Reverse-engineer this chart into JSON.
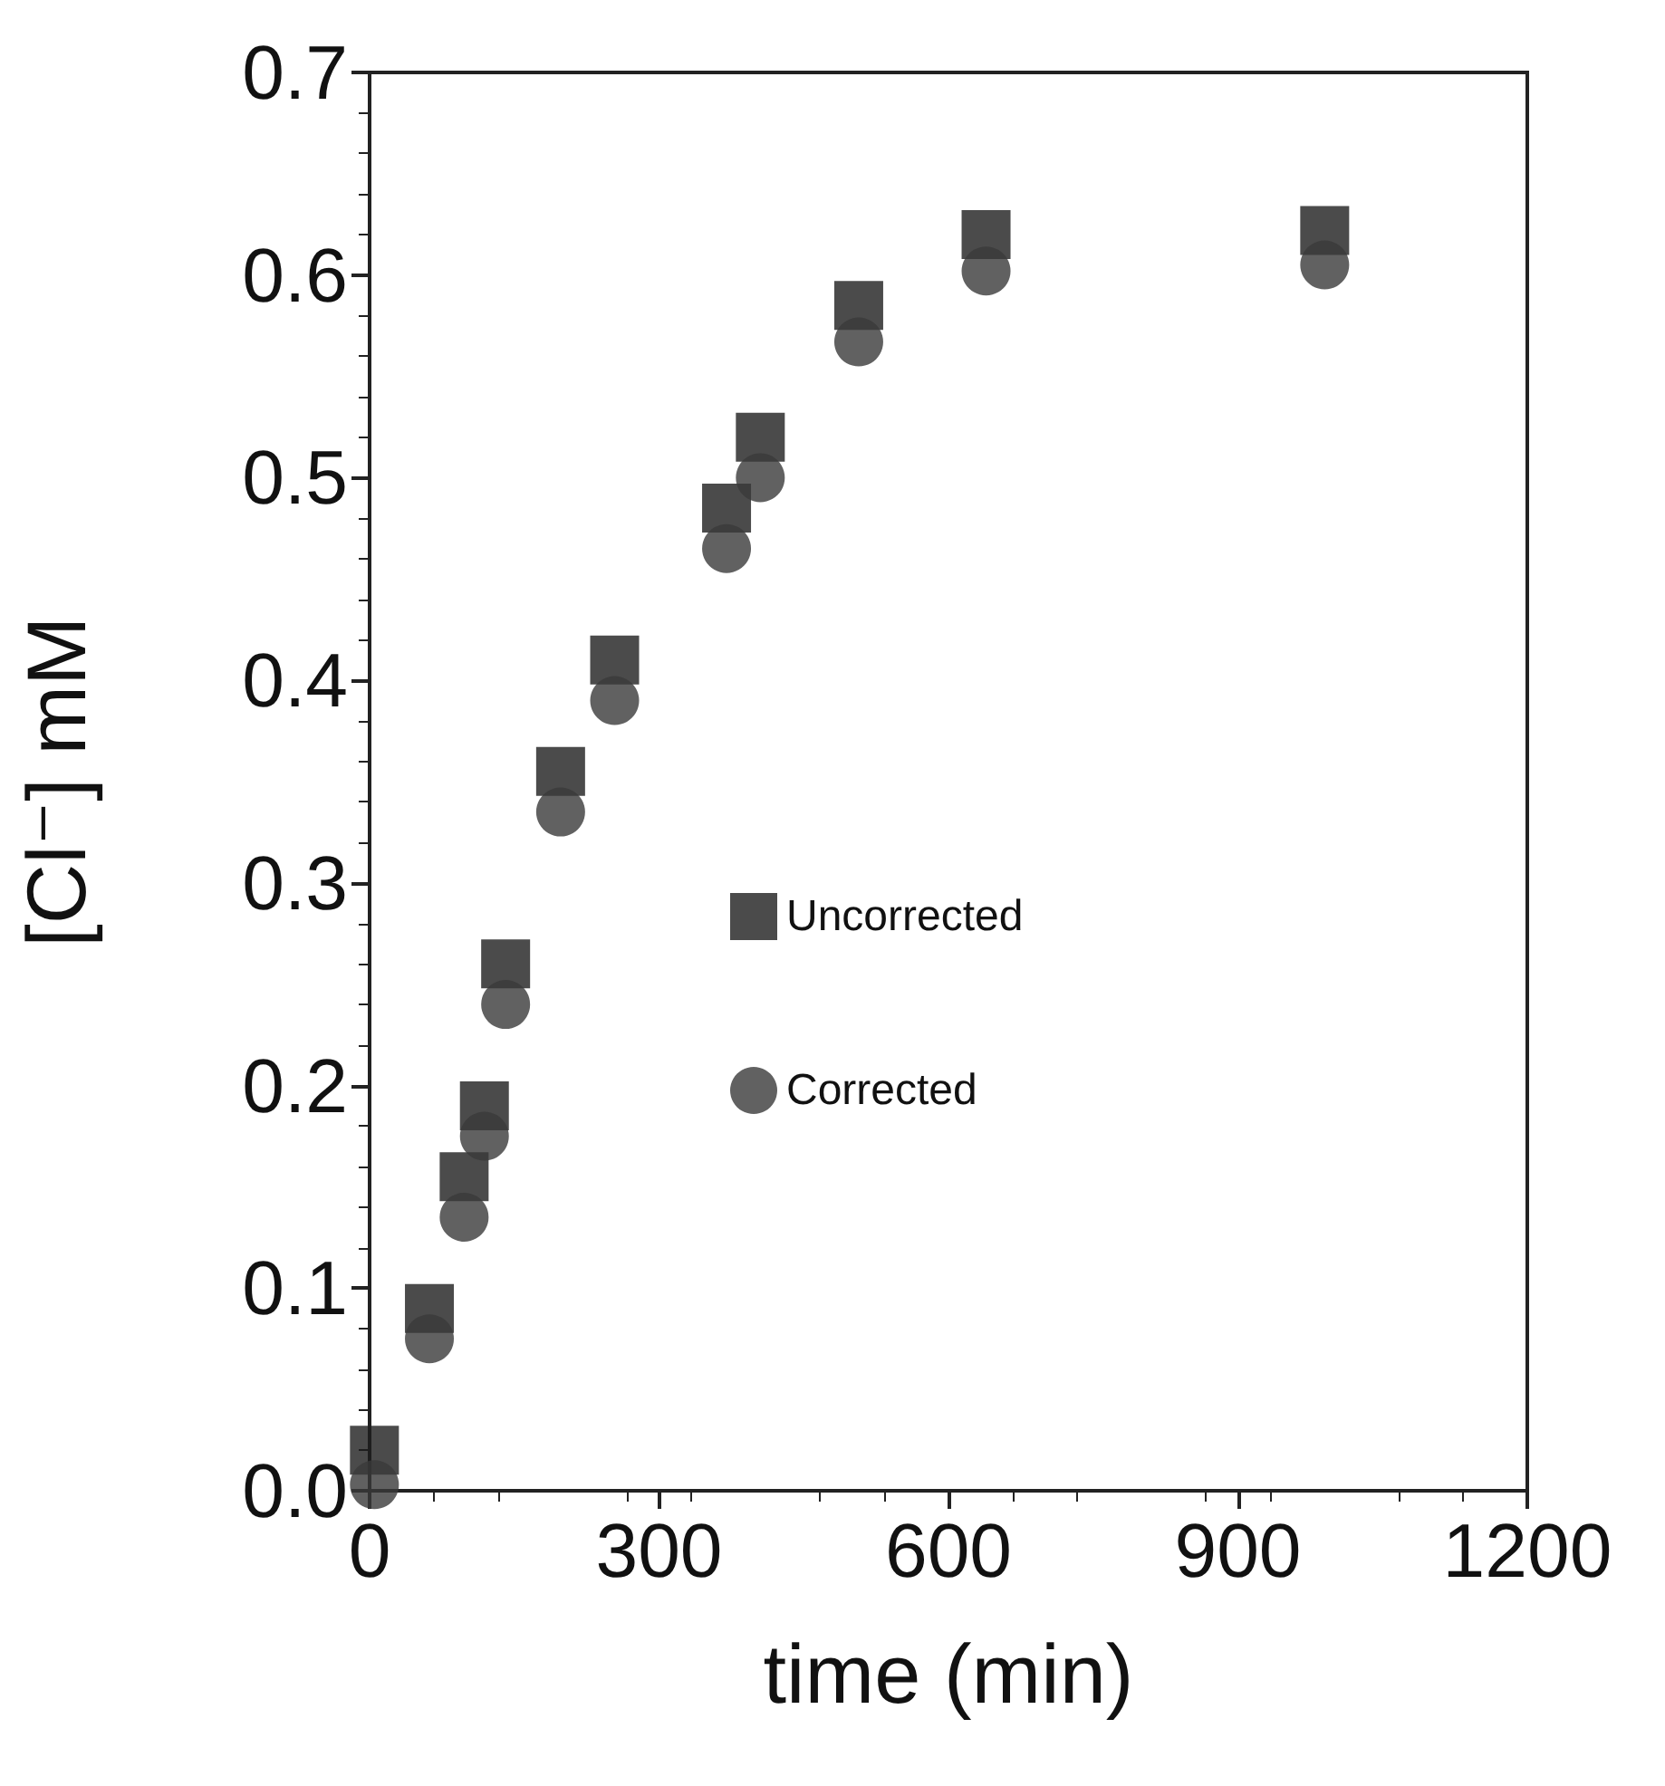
{
  "chart_data": {
    "type": "scatter",
    "xlabel": "time (min)",
    "ylabel": "[Cl⁻] mM",
    "xlim": [
      0,
      1200
    ],
    "xticks": [
      0,
      300,
      600,
      900,
      1200
    ],
    "ylim": [
      0,
      0.7
    ],
    "yticks": [
      {
        "value": 0,
        "label": "0.0"
      },
      {
        "value": 0.1,
        "label": "0.1"
      },
      {
        "value": 0.2,
        "label": "0.2"
      },
      {
        "value": 0.3,
        "label": "0.3"
      },
      {
        "value": 0.4,
        "label": "0.4"
      },
      {
        "value": 0.5,
        "label": "0.5"
      },
      {
        "value": 0.6,
        "label": "0.6"
      },
      {
        "value": 0.7,
        "label": "0.7"
      }
    ],
    "x": [
      5,
      62,
      98,
      119,
      141,
      198,
      254,
      370,
      405,
      507,
      639,
      990
    ],
    "series": [
      {
        "name": "Uncorrected",
        "color": "#1e1e1e",
        "marker": "square",
        "values": [
          0.02,
          0.09,
          0.155,
          0.19,
          0.26,
          0.355,
          0.41,
          0.485,
          0.52,
          0.585,
          0.62,
          0.622
        ]
      },
      {
        "name": "Corrected",
        "color": "#3a3a3a",
        "marker": "circle",
        "values": [
          0.003,
          0.075,
          0.135,
          0.175,
          0.24,
          0.335,
          0.39,
          0.465,
          0.5,
          0.567,
          0.602,
          0.605
        ]
      }
    ],
    "legend": "center",
    "grid": false
  }
}
